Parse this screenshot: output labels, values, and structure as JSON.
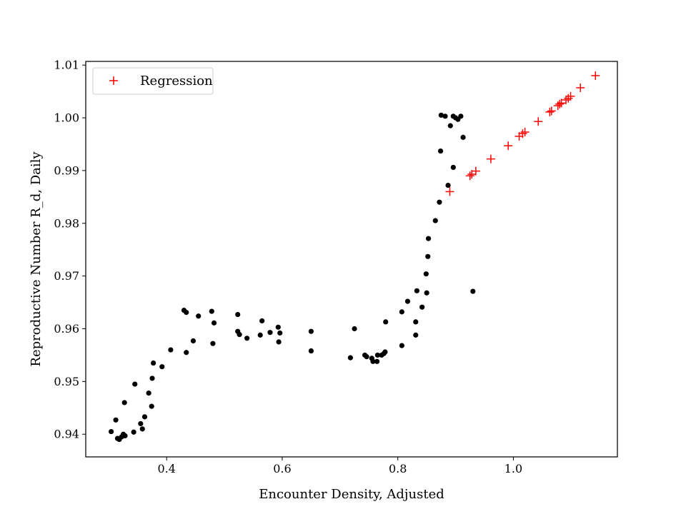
{
  "chart_data": {
    "type": "scatter",
    "title": "",
    "xlabel": "Encounter Density, Adjusted",
    "ylabel": "Reproductive Number R_d, Daily",
    "xlim": [
      0.26,
      1.18
    ],
    "ylim": [
      0.9357,
      1.0107
    ],
    "xticks": [
      0.4,
      0.6,
      0.8,
      1.0
    ],
    "xtick_labels": [
      "0.4",
      "0.6",
      "0.8",
      "1.0"
    ],
    "yticks": [
      0.94,
      0.95,
      0.96,
      0.97,
      0.98,
      0.99,
      1.0,
      1.01
    ],
    "ytick_labels": [
      "0.94",
      "0.95",
      "0.96",
      "0.97",
      "0.98",
      "0.99",
      "1.00",
      "1.01"
    ],
    "grid": false,
    "legend": {
      "position": "top-left",
      "entries": [
        "Regression"
      ]
    },
    "colors": {
      "observed": "#000000",
      "regression": "#ff0000"
    },
    "series": [
      {
        "marker": "dot",
        "color": "#000000",
        "points": [
          [
            0.304,
            0.9405
          ],
          [
            0.312,
            0.9427
          ],
          [
            0.315,
            0.9392
          ],
          [
            0.318,
            0.939
          ],
          [
            0.322,
            0.9395
          ],
          [
            0.325,
            0.94
          ],
          [
            0.328,
            0.9397
          ],
          [
            0.327,
            0.946
          ],
          [
            0.343,
            0.9404
          ],
          [
            0.345,
            0.9495
          ],
          [
            0.355,
            0.942
          ],
          [
            0.358,
            0.941
          ],
          [
            0.362,
            0.9433
          ],
          [
            0.369,
            0.9478
          ],
          [
            0.374,
            0.9453
          ],
          [
            0.375,
            0.9506
          ],
          [
            0.377,
            0.9535
          ],
          [
            0.392,
            0.9528
          ],
          [
            0.407,
            0.956
          ],
          [
            0.43,
            0.9635
          ],
          [
            0.434,
            0.9631
          ],
          [
            0.434,
            0.9555
          ],
          [
            0.446,
            0.9577
          ],
          [
            0.455,
            0.9624
          ],
          [
            0.478,
            0.9633
          ],
          [
            0.48,
            0.9572
          ],
          [
            0.482,
            0.9611
          ],
          [
            0.523,
            0.9627
          ],
          [
            0.523,
            0.9595
          ],
          [
            0.526,
            0.9589
          ],
          [
            0.539,
            0.9582
          ],
          [
            0.562,
            0.9588
          ],
          [
            0.565,
            0.9615
          ],
          [
            0.579,
            0.9593
          ],
          [
            0.593,
            0.9603
          ],
          [
            0.594,
            0.9575
          ],
          [
            0.596,
            0.9592
          ],
          [
            0.65,
            0.9595
          ],
          [
            0.65,
            0.9558
          ],
          [
            0.718,
            0.9545
          ],
          [
            0.725,
            0.96
          ],
          [
            0.743,
            0.955
          ],
          [
            0.746,
            0.9547
          ],
          [
            0.755,
            0.9544
          ],
          [
            0.757,
            0.9538
          ],
          [
            0.764,
            0.9538
          ],
          [
            0.765,
            0.955
          ],
          [
            0.772,
            0.955
          ],
          [
            0.776,
            0.9553
          ],
          [
            0.778,
            0.9556
          ],
          [
            0.779,
            0.9613
          ],
          [
            0.807,
            0.9568
          ],
          [
            0.807,
            0.9632
          ],
          [
            0.817,
            0.9652
          ],
          [
            0.831,
            0.9588
          ],
          [
            0.831,
            0.9613
          ],
          [
            0.833,
            0.9672
          ],
          [
            0.842,
            0.9641
          ],
          [
            0.849,
            0.9704
          ],
          [
            0.85,
            0.9668
          ],
          [
            0.852,
            0.9737
          ],
          [
            0.853,
            0.9771
          ],
          [
            0.865,
            0.9805
          ],
          [
            0.872,
            0.984
          ],
          [
            0.874,
            0.9937
          ],
          [
            0.875,
            1.0005
          ],
          [
            0.882,
            1.0003
          ],
          [
            0.887,
            0.9872
          ],
          [
            0.891,
            0.9985
          ],
          [
            0.896,
            0.9906
          ],
          [
            0.896,
            1.0003
          ],
          [
            0.9,
            1.0
          ],
          [
            0.904,
            0.9997
          ],
          [
            0.909,
            1.0003
          ],
          [
            0.913,
            0.9963
          ],
          [
            0.93,
            0.9671
          ]
        ]
      },
      {
        "name": "Regression",
        "marker": "plus",
        "color": "#ff0000",
        "points": [
          [
            0.89,
            0.986
          ],
          [
            0.925,
            0.989
          ],
          [
            0.928,
            0.9893
          ],
          [
            0.935,
            0.9899
          ],
          [
            0.961,
            0.9922
          ],
          [
            0.991,
            0.9947
          ],
          [
            1.01,
            0.9965
          ],
          [
            1.016,
            0.997
          ],
          [
            1.02,
            0.9973
          ],
          [
            1.043,
            0.9993
          ],
          [
            1.063,
            1.0011
          ],
          [
            1.066,
            1.0013
          ],
          [
            1.077,
            1.0023
          ],
          [
            1.08,
            1.0026
          ],
          [
            1.083,
            1.0028
          ],
          [
            1.091,
            1.0034
          ],
          [
            1.095,
            1.0037
          ],
          [
            1.099,
            1.0041
          ],
          [
            1.116,
            1.0057
          ],
          [
            1.142,
            1.008
          ]
        ]
      }
    ]
  }
}
